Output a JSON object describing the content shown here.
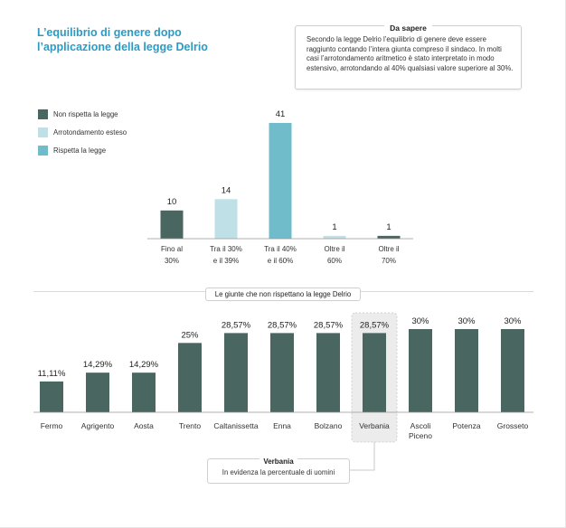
{
  "title_lines": [
    "L’equilibrio di genere dopo",
    "l’applicazione della legge Delrio"
  ],
  "info_box": {
    "heading": "Da sapere",
    "text": "Secondo la legge Delrio l’equilibrio di genere deve essere raggiunto contando l’intera giunta compreso il sindaco. In molti casi l’arrotondamento aritmetico è stato interpretato in modo estensivo, arrotondando al 40% qualsiasi valore superiore al 30%."
  },
  "colors": {
    "dark": "#4a6660",
    "light": "#bfe0e7",
    "teal": "#71bccb",
    "title": "#2b9bc4"
  },
  "chart_data": [
    {
      "type": "bar",
      "legend": [
        {
          "label": "Non rispetta la legge",
          "color": "#4a6660"
        },
        {
          "label": "Arrotondamento esteso",
          "color": "#bfe0e7"
        },
        {
          "label": "Rispetta la legge",
          "color": "#71bccb"
        }
      ],
      "categories": [
        [
          "Fino al",
          "30%"
        ],
        [
          "Tra il 30%",
          "e il 39%"
        ],
        [
          "Tra il 40%",
          "e il 60%"
        ],
        [
          "Oltre il",
          "60%"
        ],
        [
          "Oltre il",
          "70%"
        ]
      ],
      "values": [
        10,
        14,
        41,
        1,
        1
      ],
      "value_labels": [
        "10",
        "14",
        "41",
        "1",
        "1"
      ],
      "bar_colors": [
        "#4a6660",
        "#bfe0e7",
        "#71bccb",
        "#bfe0e7",
        "#4a6660"
      ],
      "ylim": [
        0,
        41
      ]
    },
    {
      "type": "bar",
      "title": "Le giunte che non rispettano la legge Delrio",
      "categories": [
        [
          "Fermo"
        ],
        [
          "Agrigento"
        ],
        [
          "Aosta"
        ],
        [
          "Trento"
        ],
        [
          "Caltanissetta"
        ],
        [
          "Enna"
        ],
        [
          "Bolzano"
        ],
        [
          "Verbania"
        ],
        [
          "Ascoli",
          "Piceno"
        ],
        [
          "Potenza"
        ],
        [
          "Grosseto"
        ]
      ],
      "values": [
        11.11,
        14.29,
        14.29,
        25,
        28.57,
        28.57,
        28.57,
        28.57,
        30,
        30,
        30
      ],
      "value_labels": [
        "11,11%",
        "14,29%",
        "14,29%",
        "25%",
        "28,57%",
        "28,57%",
        "28,57%",
        "28,57%",
        "30%",
        "30%",
        "30%"
      ],
      "highlight_index": 7,
      "ylim": [
        0,
        30
      ]
    }
  ],
  "callout": {
    "title": "Verbania",
    "text": "In evidenza la percentuale di uomini"
  }
}
